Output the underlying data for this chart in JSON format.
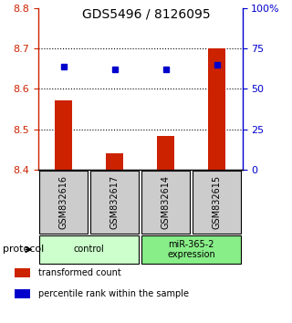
{
  "title": "GDS5496 / 8126095",
  "samples": [
    "GSM832616",
    "GSM832617",
    "GSM832614",
    "GSM832615"
  ],
  "bar_values": [
    8.572,
    8.44,
    8.483,
    8.7
  ],
  "percentile_values": [
    8.655,
    8.648,
    8.648,
    8.66
  ],
  "ylim": [
    8.4,
    8.8
  ],
  "yticks_left": [
    8.4,
    8.5,
    8.6,
    8.7,
    8.8
  ],
  "yticks_right": [
    0,
    25,
    50,
    75,
    100
  ],
  "ytick_labels_right": [
    "0",
    "25",
    "50",
    "75",
    "100%"
  ],
  "bar_color": "#cc2200",
  "dot_color": "#0000cc",
  "protocol_groups": [
    {
      "label": "control",
      "samples": [
        0,
        1
      ],
      "color": "#ccffcc"
    },
    {
      "label": "miR-365-2\nexpression",
      "samples": [
        2,
        3
      ],
      "color": "#88ee88"
    }
  ],
  "legend_items": [
    {
      "color": "#cc2200",
      "label": "transformed count"
    },
    {
      "color": "#0000cc",
      "label": "percentile rank within the sample"
    }
  ],
  "protocol_label": "protocol",
  "sample_box_color": "#cccccc",
  "fig_width": 3.2,
  "fig_height": 3.54
}
